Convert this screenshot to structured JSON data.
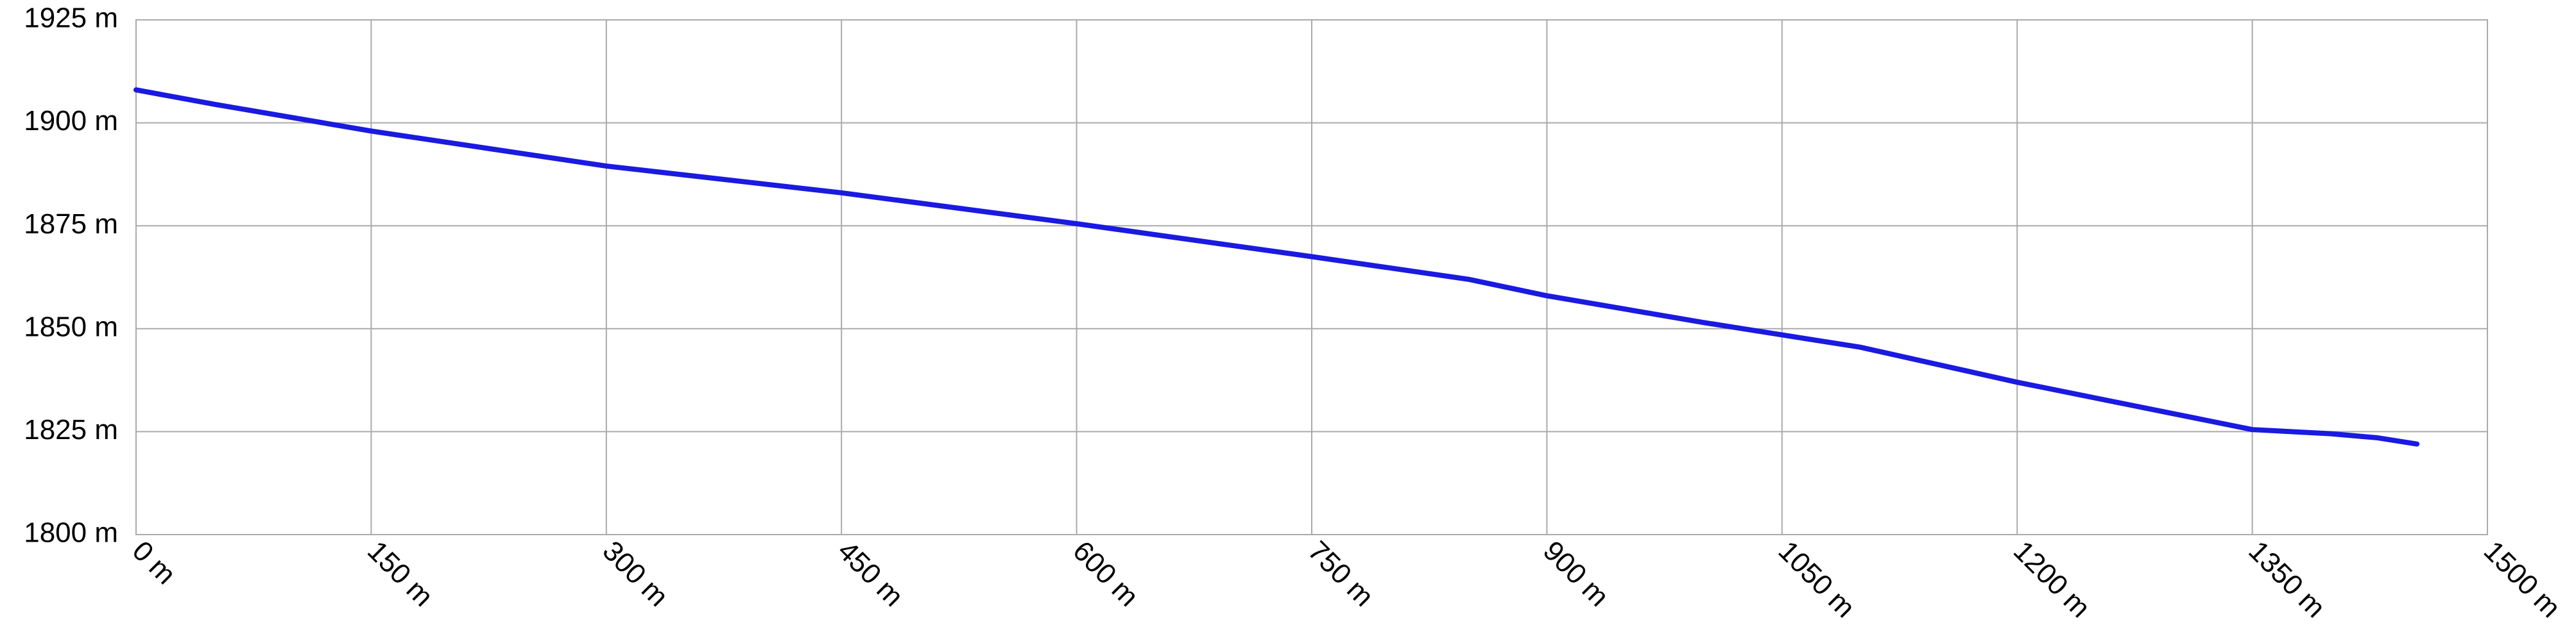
{
  "chart_data": {
    "type": "line",
    "x": [
      0,
      50,
      150,
      300,
      450,
      600,
      750,
      850,
      900,
      1000,
      1050,
      1100,
      1200,
      1350,
      1400,
      1430,
      1455
    ],
    "series": [
      {
        "color": "#1a1ae0",
        "values": [
          1908,
          1904.5,
          1898,
          1889.5,
          1883,
          1875.5,
          1867.5,
          1862,
          1858,
          1851.5,
          1848.5,
          1845.5,
          1837,
          1825.5,
          1824.5,
          1823.5,
          1822
        ]
      }
    ],
    "xlim": [
      0,
      1500
    ],
    "xticks": [
      {
        "value": 0,
        "label": "0 m"
      },
      {
        "value": 150,
        "label": "150 m"
      },
      {
        "value": 300,
        "label": "300 m"
      },
      {
        "value": 450,
        "label": "450 m"
      },
      {
        "value": 600,
        "label": "600 m"
      },
      {
        "value": 750,
        "label": "750 m"
      },
      {
        "value": 900,
        "label": "900 m"
      },
      {
        "value": 1050,
        "label": "1050 m"
      },
      {
        "value": 1200,
        "label": "1200 m"
      },
      {
        "value": 1350,
        "label": "1350 m"
      },
      {
        "value": 1500,
        "label": "1500 m"
      }
    ],
    "ylim": [
      1800,
      1925
    ],
    "yticks": [
      {
        "value": 1800,
        "label": "1800 m"
      },
      {
        "value": 1825,
        "label": "1825 m"
      },
      {
        "value": 1850,
        "label": "1850 m"
      },
      {
        "value": 1875,
        "label": "1875 m"
      },
      {
        "value": 1900,
        "label": "1900 m"
      },
      {
        "value": 1925,
        "label": "1925 m"
      }
    ],
    "grid": true
  }
}
